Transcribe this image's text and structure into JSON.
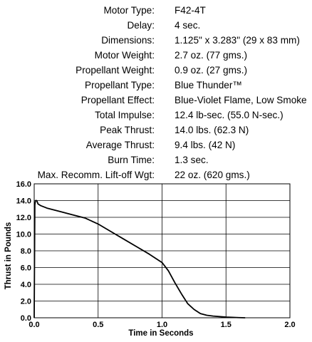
{
  "specs": [
    {
      "label": "Motor Type:",
      "value": "F42-4T"
    },
    {
      "label": "Delay:",
      "value": "4 sec."
    },
    {
      "label": "Dimensions:",
      "value": "1.125\" x 3.283\" (29 x 83 mm)"
    },
    {
      "label": "Motor Weight:",
      "value": "2.7 oz. (77 gms.)"
    },
    {
      "label": "Propellant Weight:",
      "value": "0.9 oz. (27 gms.)"
    },
    {
      "label": "Propellant Type:",
      "value": "Blue Thunder™"
    },
    {
      "label": "Propellant Effect:",
      "value": "Blue-Violet Flame, Low Smoke"
    },
    {
      "label": "Total Impulse:",
      "value": "12.4 lb-sec. (55.0 N-sec.)"
    },
    {
      "label": "Peak Thrust:",
      "value": "14.0 lbs. (62.3 N)"
    },
    {
      "label": "Average Thrust:",
      "value": "9.4 lbs. (42 N)"
    },
    {
      "label": "Burn Time:",
      "value": "1.3 sec."
    },
    {
      "label": "Max. Recomm. Lift-off Wgt:",
      "value": "22 oz. (620 gms.)"
    }
  ],
  "chart_data": {
    "type": "line",
    "xlabel": "Time in Seconds",
    "ylabel": "Thrust in Pounds",
    "xlim": [
      0,
      2.0
    ],
    "ylim": [
      0,
      16.0
    ],
    "x_ticks": [
      "0.0",
      "0.5",
      "1.0",
      "1.5",
      "2.0"
    ],
    "y_ticks": [
      "0.0",
      "2.0",
      "4.0",
      "6.0",
      "8.0",
      "10.0",
      "12.0",
      "14.0",
      "16.0"
    ],
    "grid": true,
    "series": [
      {
        "x": [
          0.0,
          0.005,
          0.01,
          0.02,
          0.03,
          0.05,
          0.1,
          0.2,
          0.3,
          0.4,
          0.5,
          0.6,
          0.7,
          0.8,
          0.9,
          1.0,
          1.05,
          1.1,
          1.15,
          1.2,
          1.25,
          1.3,
          1.35,
          1.4,
          1.5,
          1.6,
          1.65
        ],
        "y": [
          0.0,
          13.5,
          14.0,
          14.0,
          13.6,
          13.4,
          13.1,
          12.7,
          12.3,
          11.9,
          11.2,
          10.3,
          9.4,
          8.5,
          7.6,
          6.6,
          5.6,
          4.2,
          2.9,
          1.7,
          1.0,
          0.5,
          0.3,
          0.2,
          0.08,
          0.02,
          0.0
        ]
      }
    ]
  },
  "style": {
    "line_color": "#000000",
    "grid_color": "#000000"
  }
}
